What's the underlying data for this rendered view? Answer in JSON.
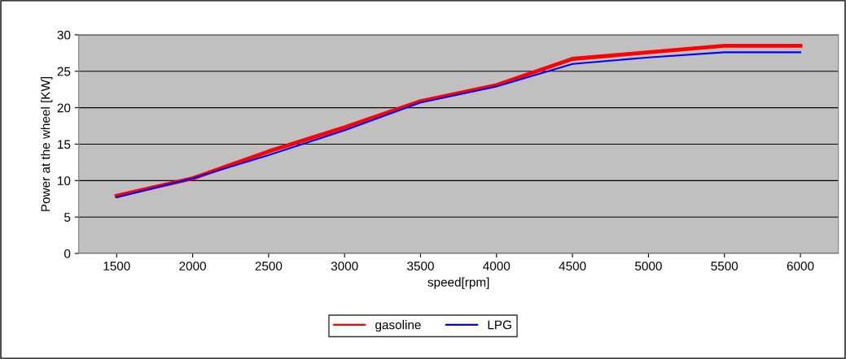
{
  "chart_data": {
    "type": "line",
    "xlabel": "speed[rpm]",
    "ylabel": "Power at the wheel [KW]",
    "categories": [
      "1500",
      "2000",
      "2500",
      "3000",
      "3500",
      "4000",
      "4500",
      "5000",
      "5500",
      "6000"
    ],
    "series": [
      {
        "name": "gasoline",
        "color": "#ff0000",
        "values": [
          7.9,
          10.3,
          14.0,
          17.3,
          20.9,
          23.1,
          26.7,
          27.6,
          28.5,
          28.5
        ]
      },
      {
        "name": "LPG",
        "color": "#0000ff",
        "values": [
          7.7,
          10.3,
          13.5,
          16.9,
          20.7,
          22.9,
          26.0,
          26.9,
          27.6,
          27.6
        ]
      }
    ],
    "ylim": [
      0,
      30
    ],
    "yticks": [
      0,
      5,
      10,
      15,
      20,
      25,
      30
    ],
    "grid": "y",
    "legend": "bottom",
    "marker": "none",
    "line_style": "solid"
  }
}
